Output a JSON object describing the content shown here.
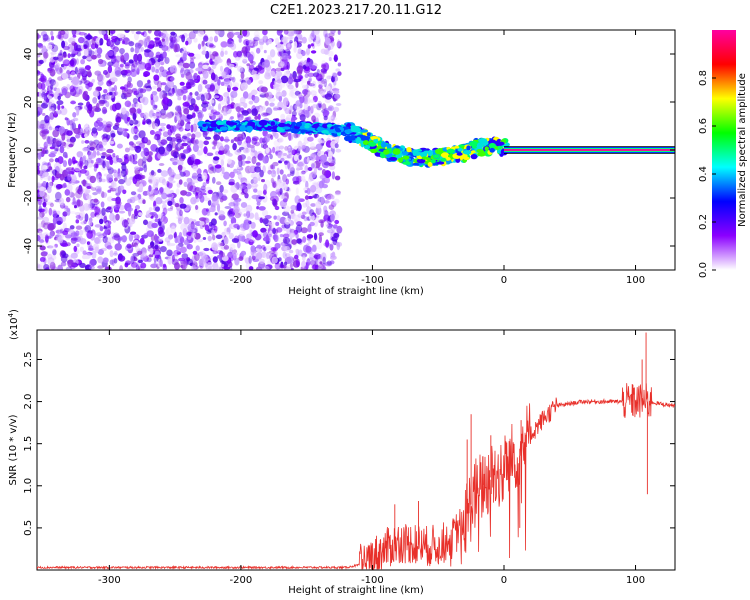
{
  "figure": {
    "title": "C2E1.2023.217.20.11.G12"
  },
  "chart_data": [
    {
      "type": "heatmap",
      "xlabel": "Height of straight line (km)",
      "ylabel": "Frequency (Hz)",
      "xlim": [
        -355,
        130
      ],
      "ylim": [
        -50,
        50
      ],
      "x_ticks": [
        -300,
        -200,
        -100,
        0,
        100
      ],
      "y_ticks": [
        -40,
        -20,
        0,
        20,
        40
      ],
      "colorbar": {
        "label": "Normalized spectral amplitude",
        "range": [
          0.0,
          1.0
        ],
        "ticks": [
          0.0,
          0.2,
          0.4,
          0.6,
          0.8
        ],
        "colormap": [
          "#ffffff",
          "#8b00ff",
          "#0000ff",
          "#00ffff",
          "#00ff00",
          "#ffff00",
          "#ff0000",
          "#ff00a0"
        ]
      },
      "ridge": {
        "x": [
          -230,
          -200,
          -180,
          -160,
          -140,
          -120,
          -110,
          -100,
          -90,
          -80,
          -70,
          -60,
          -50,
          -40,
          -30,
          -20,
          -10,
          0,
          20,
          60,
          100,
          130
        ],
        "y": [
          10,
          10,
          10,
          9.5,
          9,
          8,
          6,
          3,
          0,
          -2,
          -3,
          -3,
          -3,
          -2,
          -1,
          1,
          2,
          1,
          0.3,
          0,
          0,
          0
        ]
      },
      "grid": false
    },
    {
      "type": "line",
      "xlabel": "Height of straight line (km)",
      "ylabel": "SNR (10 * v/v)",
      "y_scale_label": "(x10",
      "y_scale_exponent": "4",
      "y_scale_close": ")",
      "xlim": [
        -355,
        130
      ],
      "ylim": [
        0,
        2.85
      ],
      "x_ticks": [
        -300,
        -200,
        -100,
        0,
        100
      ],
      "y_ticks": [
        0.5,
        1.0,
        1.5,
        2.0,
        2.5
      ],
      "color": "#e8302a",
      "envelope": {
        "x": [
          -355,
          -120,
          -110,
          -100,
          -90,
          -80,
          -70,
          -60,
          -50,
          -40,
          -30,
          -20,
          -10,
          0,
          10,
          20,
          30,
          40,
          60,
          80,
          90,
          100,
          110,
          120,
          130
        ],
        "y": [
          0.03,
          0.03,
          0.06,
          0.15,
          0.25,
          0.33,
          0.32,
          0.28,
          0.3,
          0.35,
          0.6,
          0.95,
          1.1,
          1.2,
          1.4,
          1.6,
          1.8,
          1.95,
          2.0,
          2.0,
          2.0,
          2.0,
          2.0,
          1.97,
          1.95
        ]
      },
      "spikes": [
        {
          "x": -83,
          "y": 0.78
        },
        {
          "x": -65,
          "y": 0.82
        },
        {
          "x": -28,
          "y": 1.55
        },
        {
          "x": -25,
          "y": 1.85
        },
        {
          "x": -16,
          "y": 1.35
        },
        {
          "x": -10,
          "y": 1.6
        },
        {
          "x": 12,
          "y": 0.5
        },
        {
          "x": 13,
          "y": 1.78
        },
        {
          "x": 98,
          "y": 2.2
        },
        {
          "x": 105,
          "y": 2.5
        },
        {
          "x": 108,
          "y": 2.82
        },
        {
          "x": 109,
          "y": 0.9
        }
      ],
      "grid": false
    }
  ]
}
